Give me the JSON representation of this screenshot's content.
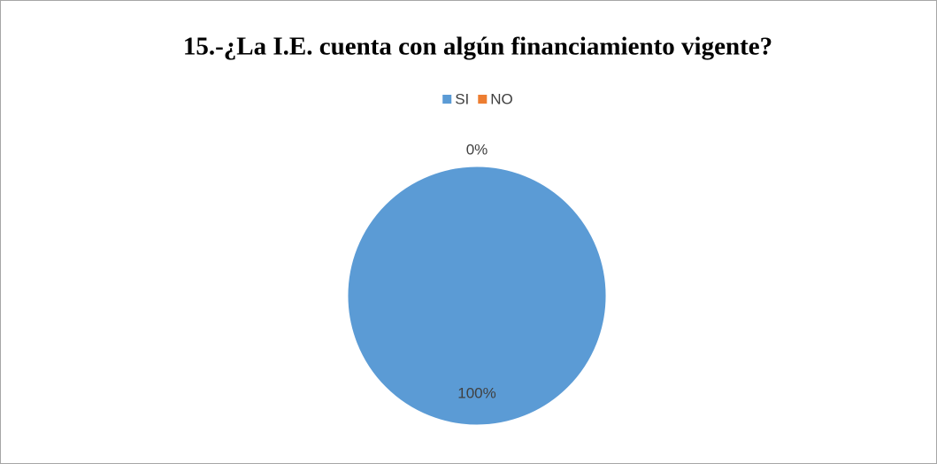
{
  "chart_data": {
    "type": "pie",
    "title": "15.-¿La I.E. cuenta con algún financiamiento vigente?",
    "categories": [
      "SI",
      "NO"
    ],
    "values": [
      100,
      0
    ],
    "value_labels": [
      "100%",
      "0%"
    ],
    "colors": [
      "#5b9bd5",
      "#ed7d31"
    ],
    "legend": "top"
  }
}
